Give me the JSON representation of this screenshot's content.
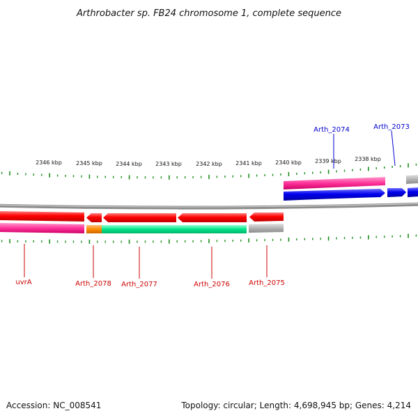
{
  "title": "Arthrobacter sp. FB24 chromosome 1, complete sequence",
  "footer": {
    "accession": "Accession: NC_008541",
    "topology": "Topology: circular; Length: 4,698,945 bp; Genes: 4,214"
  },
  "scale_labels": [
    "2346 kbp",
    "2345 kbp",
    "2344 kbp",
    "2343 kbp",
    "2342 kbp",
    "2341 kbp",
    "2340 kbp",
    "2339 kbp",
    "2338 kbp"
  ],
  "gene_labels": {
    "top": [
      {
        "name": "Arth_2074",
        "color": "#0000cc"
      },
      {
        "name": "Arth_2073",
        "color": "#0000cc"
      }
    ],
    "bottom": [
      {
        "name": "uvrA",
        "color": "#cc0000"
      },
      {
        "name": "Arth_2078",
        "color": "#cc0000"
      },
      {
        "name": "Arth_2077",
        "color": "#cc0000"
      },
      {
        "name": "Arth_2076",
        "color": "#cc0000"
      },
      {
        "name": "Arth_2075",
        "color": "#cc0000"
      }
    ]
  },
  "colors": {
    "backbone": "#8c8c8c",
    "cds_reverse": "#ff0000",
    "cds_forward": "#0000ee",
    "cog_magenta": "#ff3399",
    "cog_orange": "#ff8c00",
    "cog_green": "#00e68a",
    "cog_gray": "#b3b3b3",
    "tick": "#1a8c1a"
  }
}
